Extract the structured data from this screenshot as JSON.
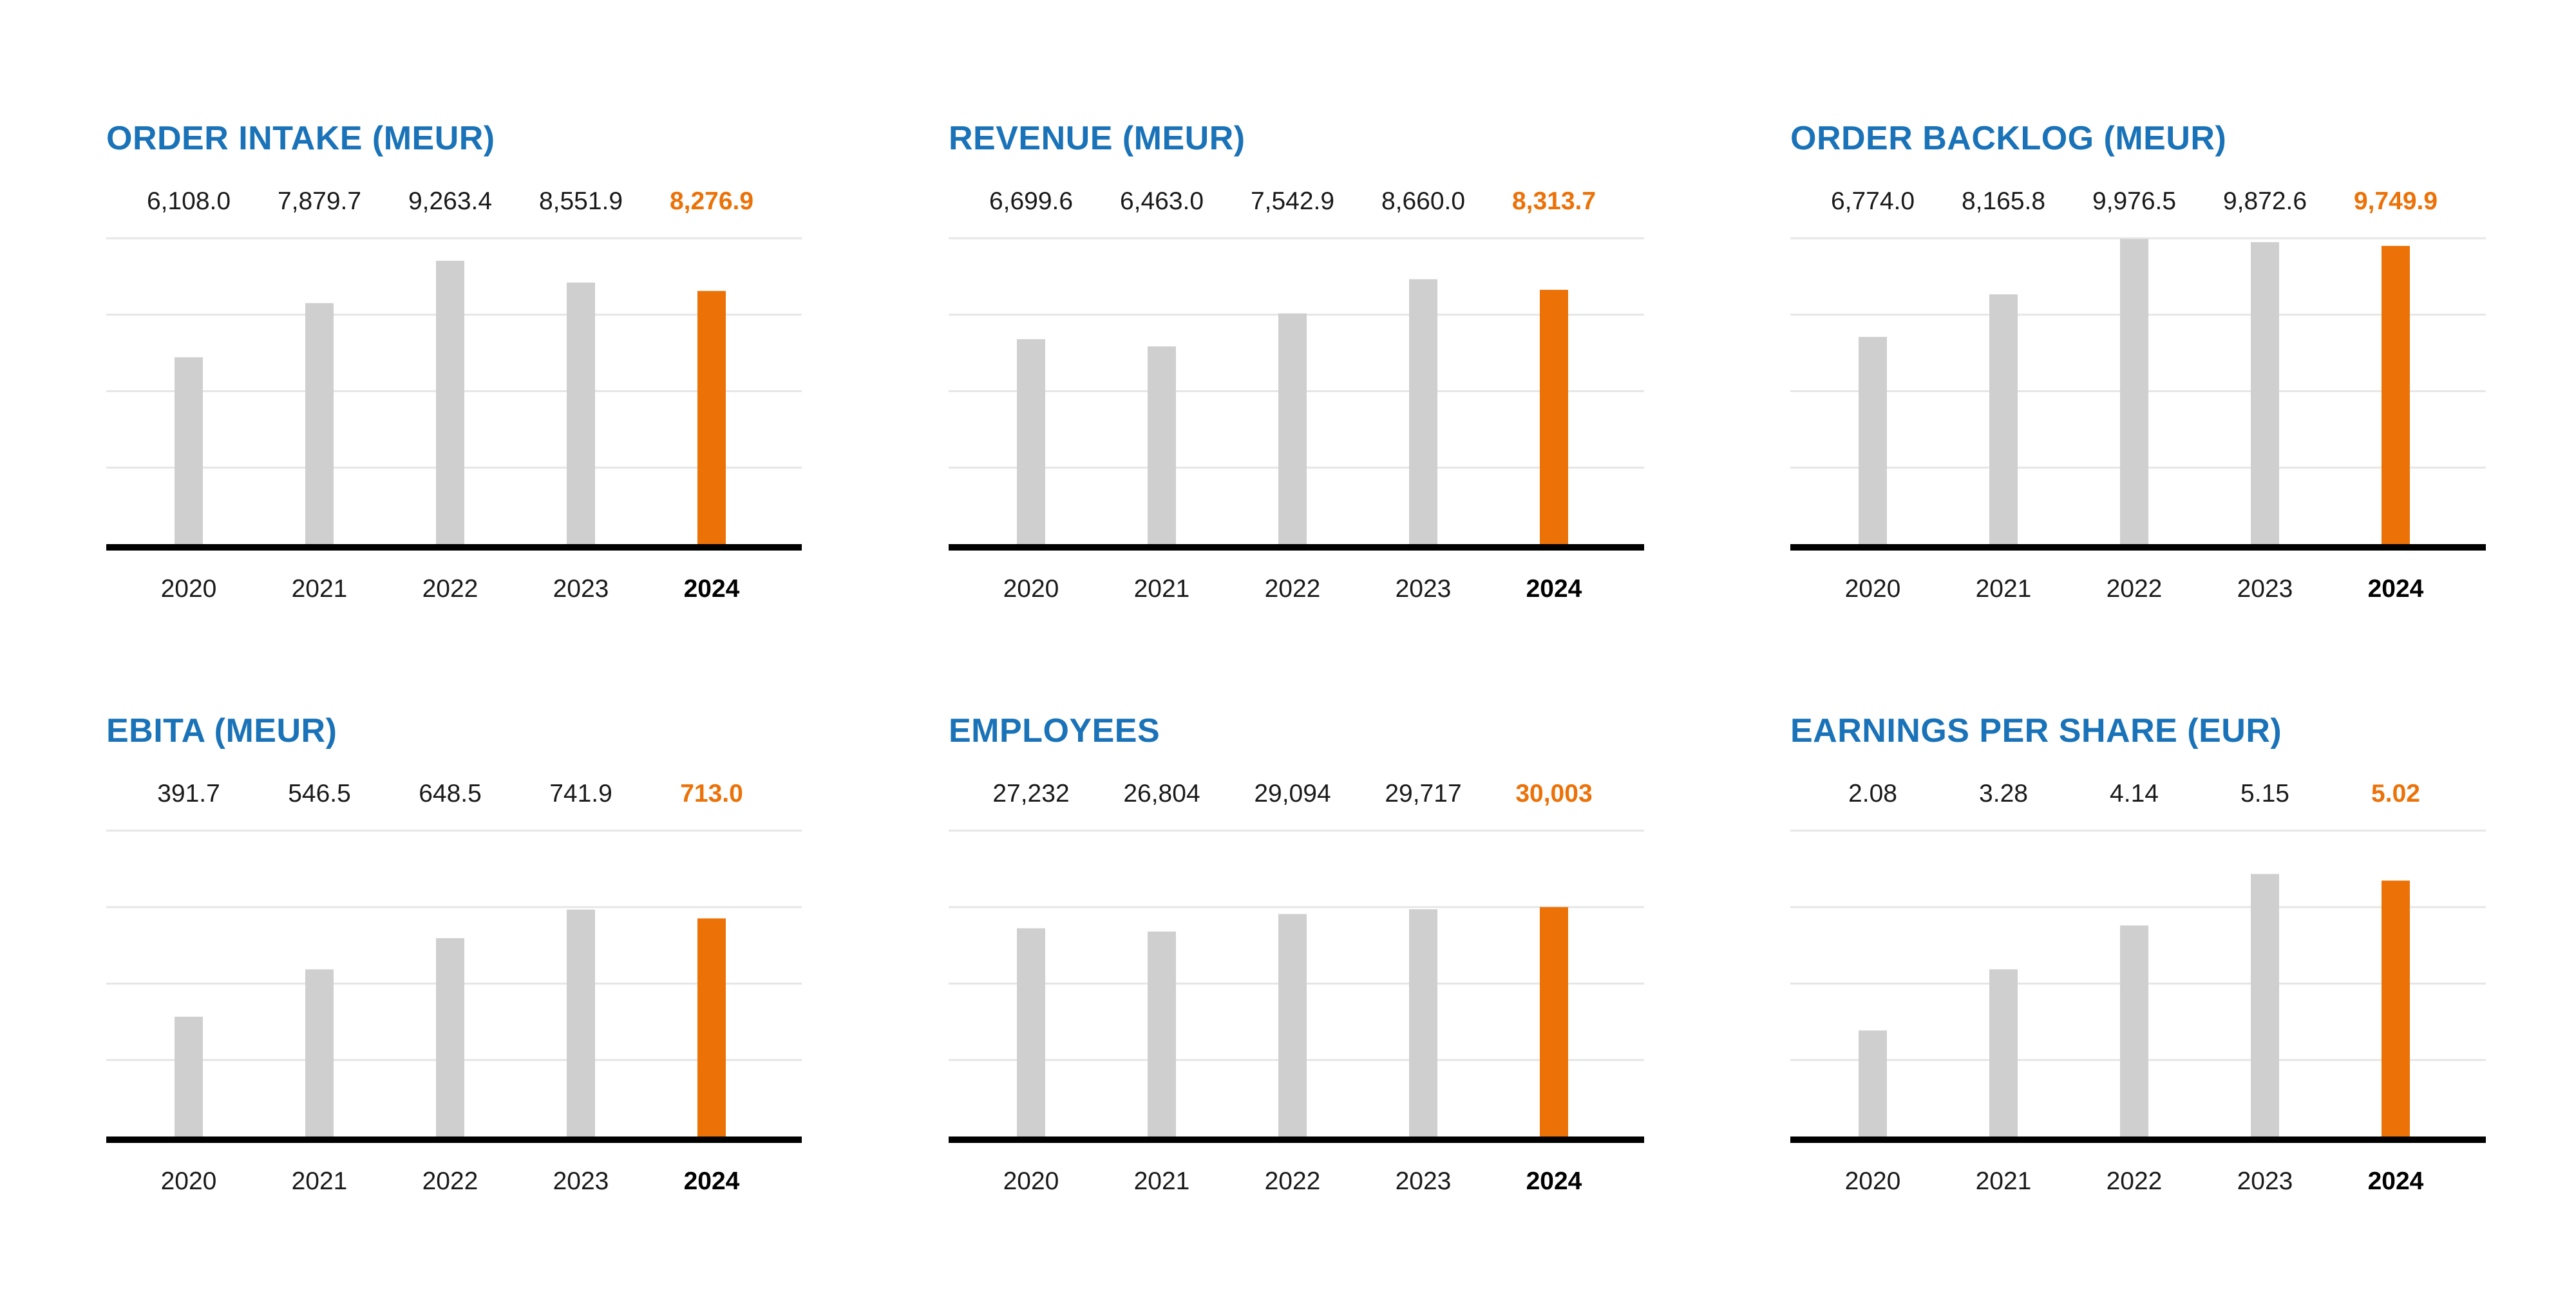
{
  "colors": {
    "title": "#1a73b8",
    "bar": "#cfcfcf",
    "highlight": "#ec7107",
    "text": "#1a1a1a",
    "axis": "#000000",
    "grid": "#e6e6e6"
  },
  "highlight_category": "2024",
  "chart_data": [
    {
      "type": "bar",
      "title": "ORDER INTAKE (MEUR)",
      "categories": [
        "2020",
        "2021",
        "2022",
        "2023",
        "2024"
      ],
      "values": [
        6108.0,
        7879.7,
        9263.4,
        8551.9,
        8276.9
      ],
      "value_labels": [
        "6,108.0",
        "7,879.7",
        "9,263.4",
        "8,551.9",
        "8,276.9"
      ],
      "ylim": [
        0,
        10000
      ],
      "grid": true
    },
    {
      "type": "bar",
      "title": "REVENUE (MEUR)",
      "categories": [
        "2020",
        "2021",
        "2022",
        "2023",
        "2024"
      ],
      "values": [
        6699.6,
        6463.0,
        7542.9,
        8660.0,
        8313.7
      ],
      "value_labels": [
        "6,699.6",
        "6,463.0",
        "7,542.9",
        "8,660.0",
        "8,313.7"
      ],
      "ylim": [
        0,
        10000
      ],
      "grid": true
    },
    {
      "type": "bar",
      "title": "ORDER BACKLOG (MEUR)",
      "categories": [
        "2020",
        "2021",
        "2022",
        "2023",
        "2024"
      ],
      "values": [
        6774.0,
        8165.8,
        9976.5,
        9872.6,
        9749.9
      ],
      "value_labels": [
        "6,774.0",
        "8,165.8",
        "9,976.5",
        "9,872.6",
        "9,749.9"
      ],
      "ylim": [
        0,
        10000
      ],
      "grid": true
    },
    {
      "type": "bar",
      "title": "EBITA (MEUR)",
      "categories": [
        "2020",
        "2021",
        "2022",
        "2023",
        "2024"
      ],
      "values": [
        391.7,
        546.5,
        648.5,
        741.9,
        713.0
      ],
      "value_labels": [
        "391.7",
        "546.5",
        "648.5",
        "741.9",
        "713.0"
      ],
      "ylim": [
        0,
        1000
      ],
      "grid": true
    },
    {
      "type": "bar",
      "title": "EMPLOYEES",
      "categories": [
        "2020",
        "2021",
        "2022",
        "2023",
        "2024"
      ],
      "values": [
        27232,
        26804,
        29094,
        29717,
        30003
      ],
      "value_labels": [
        "27,232",
        "26,804",
        "29,094",
        "29,717",
        "30,003"
      ],
      "ylim": [
        0,
        40000
      ],
      "grid": true
    },
    {
      "type": "bar",
      "title": "EARNINGS PER SHARE (EUR)",
      "categories": [
        "2020",
        "2021",
        "2022",
        "2023",
        "2024"
      ],
      "values": [
        2.08,
        3.28,
        4.14,
        5.15,
        5.02
      ],
      "value_labels": [
        "2.08",
        "3.28",
        "4.14",
        "5.15",
        "5.02"
      ],
      "ylim": [
        0,
        6
      ],
      "grid": true
    }
  ]
}
